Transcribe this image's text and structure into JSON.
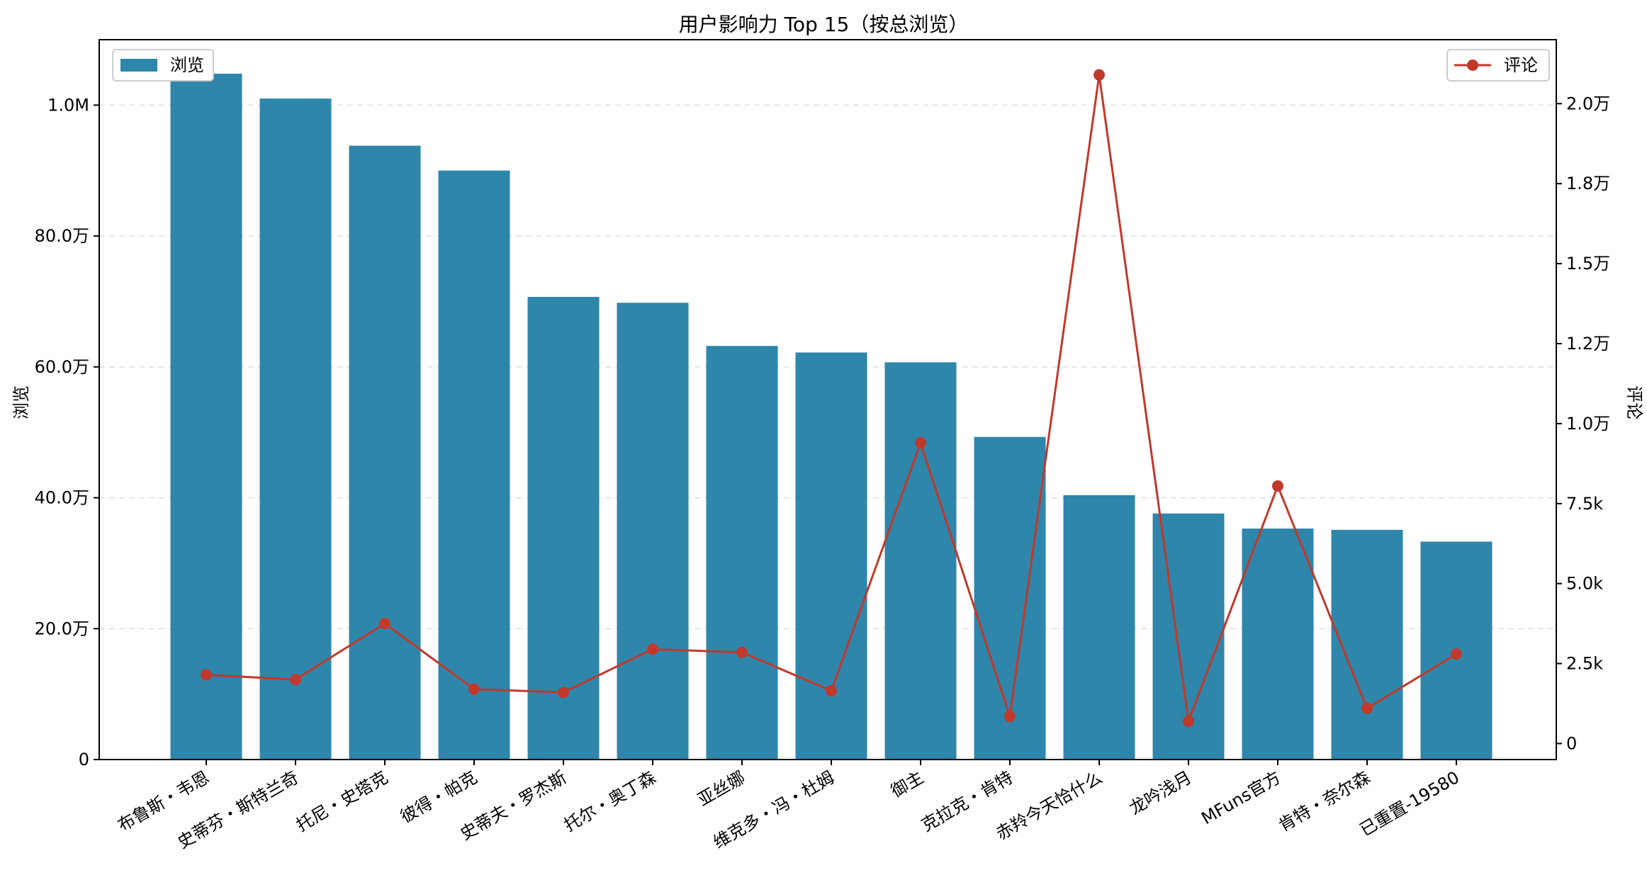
{
  "chart_data": {
    "type": "bar",
    "title": "用户影响力 Top 15（按总浏览）",
    "ylabel": "浏览",
    "y2label": "评论",
    "categories": [
      "布鲁斯・韦恩",
      "史蒂芬・斯特兰奇",
      "托尼・史塔克",
      "彼得・帕克",
      "史蒂夫・罗杰斯",
      "托尔・奥丁森",
      "亚丝娜",
      "维克多・冯・杜姆",
      "御主",
      "克拉克・肯特",
      "赤羚今天恰什么",
      "龙吟浅月",
      "MFuns官方",
      "肯特・奈尔森",
      "已重置-19580"
    ],
    "series": [
      {
        "name": "浏览",
        "type": "bar",
        "axis": "left",
        "color": "#2e86ab",
        "values": [
          1048000,
          1010000,
          938000,
          900000,
          707000,
          698000,
          632000,
          622000,
          607000,
          493000,
          404000,
          376000,
          353000,
          351000,
          333000
        ]
      },
      {
        "name": "评论",
        "type": "line",
        "axis": "right",
        "color": "#c0392b",
        "values": [
          2150,
          2000,
          3750,
          1700,
          1600,
          2950,
          2850,
          1650,
          9400,
          850,
          20900,
          700,
          8050,
          1100,
          2800
        ]
      }
    ],
    "ylim": [
      0,
      1100000
    ],
    "y2lim": [
      -500,
      22000
    ],
    "yticks": [
      {
        "value": 0,
        "label": "0"
      },
      {
        "value": 200000,
        "label": "20.0万"
      },
      {
        "value": 400000,
        "label": "40.0万"
      },
      {
        "value": 600000,
        "label": "60.0万"
      },
      {
        "value": 800000,
        "label": "80.0万"
      },
      {
        "value": 1000000,
        "label": "1.0M"
      }
    ],
    "y2ticks": [
      {
        "value": 0,
        "label": "0"
      },
      {
        "value": 2500,
        "label": "2.5k"
      },
      {
        "value": 5000,
        "label": "5.0k"
      },
      {
        "value": 7500,
        "label": "7.5k"
      },
      {
        "value": 10000,
        "label": "1.0万"
      },
      {
        "value": 12500,
        "label": "1.2万"
      },
      {
        "value": 15000,
        "label": "1.5万"
      },
      {
        "value": 17500,
        "label": "1.8万"
      },
      {
        "value": 20000,
        "label": "2.0万"
      }
    ],
    "grid": "horizontal-dashed",
    "legend": [
      {
        "label": "浏览",
        "placement": "top-left"
      },
      {
        "label": "评论",
        "placement": "top-right"
      }
    ]
  }
}
